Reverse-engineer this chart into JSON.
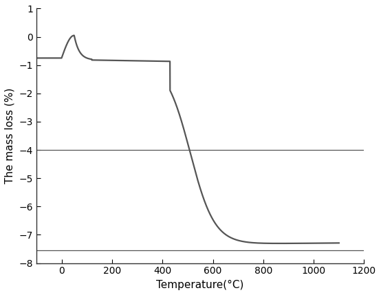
{
  "title": "",
  "xlabel": "Temperature(°C)",
  "ylabel": "The mass loss (%)",
  "xlim": [
    -100,
    1200
  ],
  "ylim": [
    -8,
    1
  ],
  "xticks": [
    0,
    200,
    400,
    600,
    800,
    1000,
    1200
  ],
  "yticks": [
    1,
    0,
    -1,
    -2,
    -3,
    -4,
    -5,
    -6,
    -7,
    -8
  ],
  "hline1": -4.0,
  "hline2": -7.55,
  "curve_color": "#555555",
  "hline_color": "#555555",
  "line_width": 1.6,
  "background_color": "#ffffff"
}
